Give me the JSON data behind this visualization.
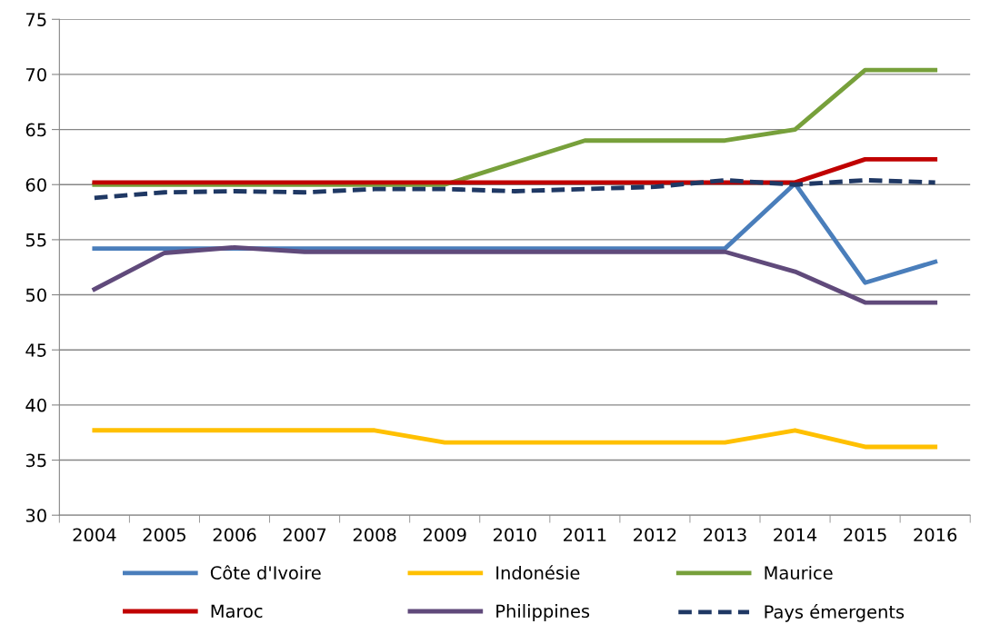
{
  "chart_data": {
    "type": "line",
    "categories": [
      "2004",
      "2005",
      "2006",
      "2007",
      "2008",
      "2009",
      "2010",
      "2011",
      "2012",
      "2013",
      "2014",
      "2015",
      "2016"
    ],
    "series": [
      {
        "name": "Côte d'Ivoire",
        "color": "#4a7ebb",
        "values": [
          54.2,
          54.2,
          54.2,
          54.2,
          54.2,
          54.2,
          54.2,
          54.2,
          54.2,
          54.2,
          60.1,
          51.1,
          53.0
        ]
      },
      {
        "name": "Indonésie",
        "color": "#ffc000",
        "values": [
          37.7,
          37.7,
          37.7,
          37.7,
          37.7,
          36.6,
          36.6,
          36.6,
          36.6,
          36.6,
          37.7,
          36.2,
          36.2
        ]
      },
      {
        "name": "Maurice",
        "color": "#77a03b",
        "values": [
          60.0,
          60.0,
          60.0,
          60.0,
          60.0,
          60.0,
          62.0,
          64.0,
          64.0,
          64.0,
          65.0,
          70.4,
          70.4
        ]
      },
      {
        "name": "Maroc",
        "color": "#c00000",
        "values": [
          60.2,
          60.2,
          60.2,
          60.2,
          60.2,
          60.2,
          60.2,
          60.2,
          60.2,
          60.2,
          60.2,
          62.3,
          62.3
        ]
      },
      {
        "name": "Philippines",
        "color": "#604a7b",
        "values": [
          50.5,
          53.8,
          54.3,
          53.9,
          53.9,
          53.9,
          53.9,
          53.9,
          53.9,
          53.9,
          52.1,
          49.3,
          49.3
        ]
      },
      {
        "name": "Pays émergents",
        "color": "#1f3864",
        "line_style": "dashed",
        "values": [
          58.8,
          59.3,
          59.4,
          59.3,
          59.6,
          59.6,
          59.4,
          59.6,
          59.8,
          60.4,
          60.0,
          60.4,
          60.2
        ]
      }
    ],
    "ylim": [
      30,
      75
    ],
    "yticks": [
      30,
      35,
      40,
      45,
      50,
      55,
      60,
      65,
      70,
      75
    ],
    "grid": "y",
    "legend": "bottom",
    "marker": "none",
    "line_style": "solid"
  }
}
